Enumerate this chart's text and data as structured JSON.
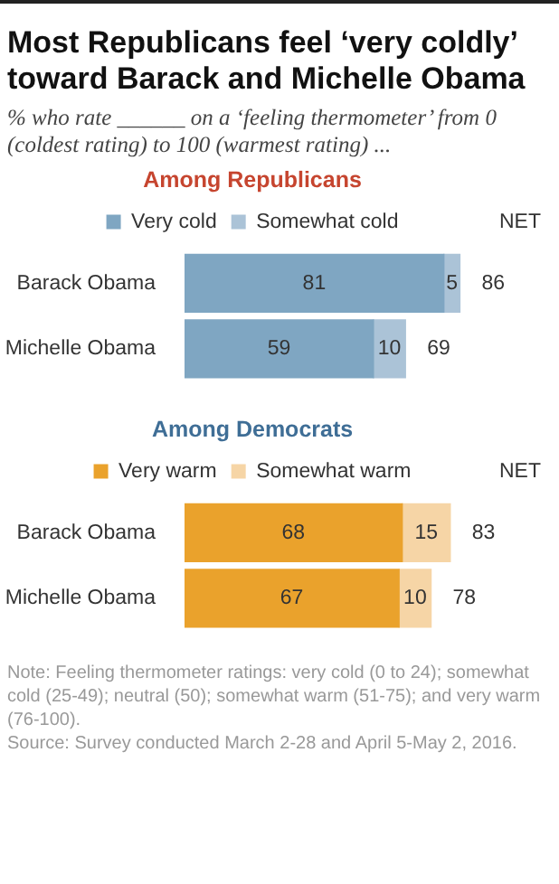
{
  "chart_data": [
    {
      "type": "bar",
      "orientation": "horizontal",
      "stacked": true,
      "title": "Most Republicans feel ‘very coldly’ toward Barack and Michelle Obama",
      "subtitle": "% who rate ______ on a ‘feeling thermometer’ from 0 (coldest rating) to 100 (warmest rating) ...",
      "legend_title": "Among Republicans",
      "categories": [
        "Barack Obama",
        "Michelle Obama"
      ],
      "series": [
        {
          "name": "Very cold",
          "color": "#7fa6c2",
          "values": [
            81,
            59
          ]
        },
        {
          "name": "Somewhat cold",
          "color": "#abc3d7",
          "values": [
            5,
            10
          ]
        }
      ],
      "tick_labels": "y",
      "grid": false,
      "legend": "top",
      "data_labels": true,
      "totals": [
        "86",
        "69"
      ],
      "y2label": "NET"
    },
    {
      "type": "bar",
      "orientation": "horizontal",
      "stacked": true,
      "legend_title": "Among Democrats",
      "categories": [
        "Barack Obama",
        "Michelle Obama"
      ],
      "series": [
        {
          "name": "Very warm",
          "color": "#eaa22c",
          "values": [
            68,
            67
          ]
        },
        {
          "name": "Somewhat warm",
          "color": "#f6d5a6",
          "values": [
            15,
            10
          ]
        }
      ],
      "tick_labels": "y",
      "grid": false,
      "legend": "top",
      "data_labels": true,
      "totals": [
        "83",
        "78"
      ],
      "y2label": "NET",
      "annotations": [
        "Note: Feeling thermometer ratings: very cold (0 to 24); somewhat cold (25-49); neutral (50); somewhat warm (51-75); and very warm (76-100).",
        "Source: Survey conducted March 2-28 and April 5-May 2, 2016."
      ]
    }
  ]
}
